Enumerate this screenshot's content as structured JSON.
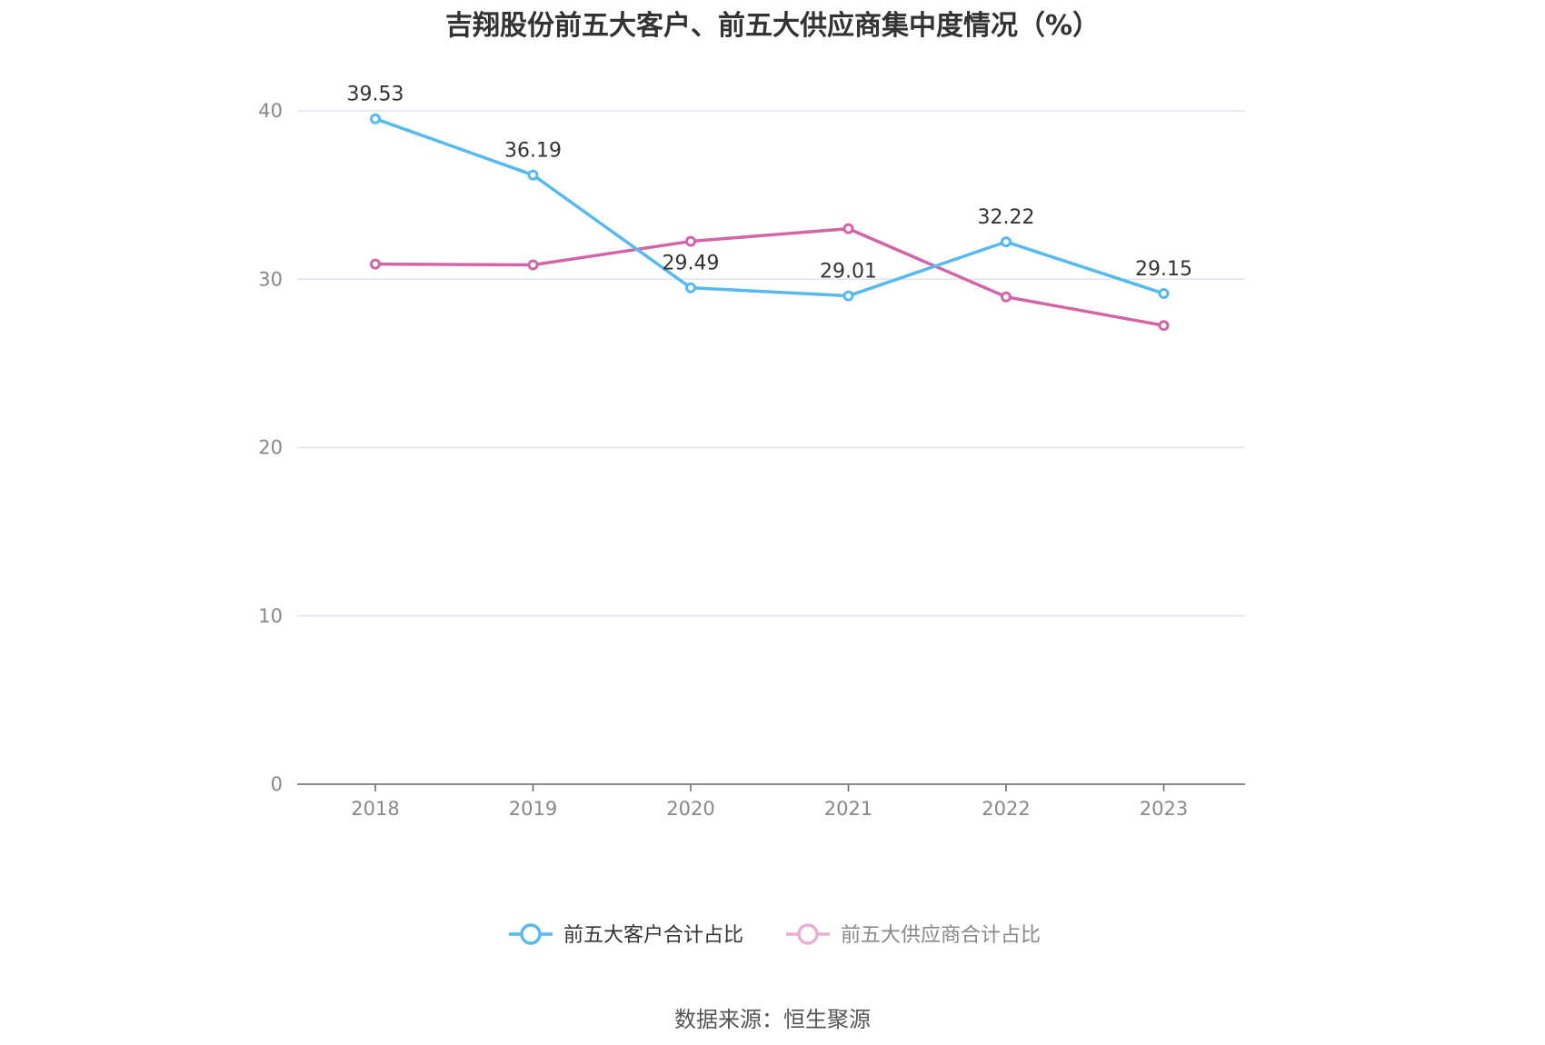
{
  "chart_data": {
    "type": "line",
    "title": "吉翔股份前五大客户、前五大供应商集中度情况（%）",
    "categories": [
      "2018",
      "2019",
      "2020",
      "2021",
      "2022",
      "2023"
    ],
    "ylim": [
      0,
      40
    ],
    "yticks": [
      "0",
      "10",
      "20",
      "30",
      "40"
    ],
    "grid": true,
    "legend_position": "bottom-center",
    "series": [
      {
        "name": "前五大客户合计占比",
        "color": "#56b9f0",
        "values": [
          39.53,
          36.19,
          29.49,
          29.01,
          32.22,
          29.15
        ],
        "labels": [
          "39.53",
          "36.19",
          "29.49",
          "29.01",
          "32.22",
          "29.15"
        ],
        "show_labels": true
      },
      {
        "name": "前五大供应商合计占比",
        "color": "#d364a8",
        "legend_color": "#eaaed3",
        "values": [
          30.9,
          30.85,
          32.25,
          33.0,
          28.95,
          27.25
        ],
        "show_labels": false
      }
    ]
  },
  "source": "数据来源：恒生聚源"
}
